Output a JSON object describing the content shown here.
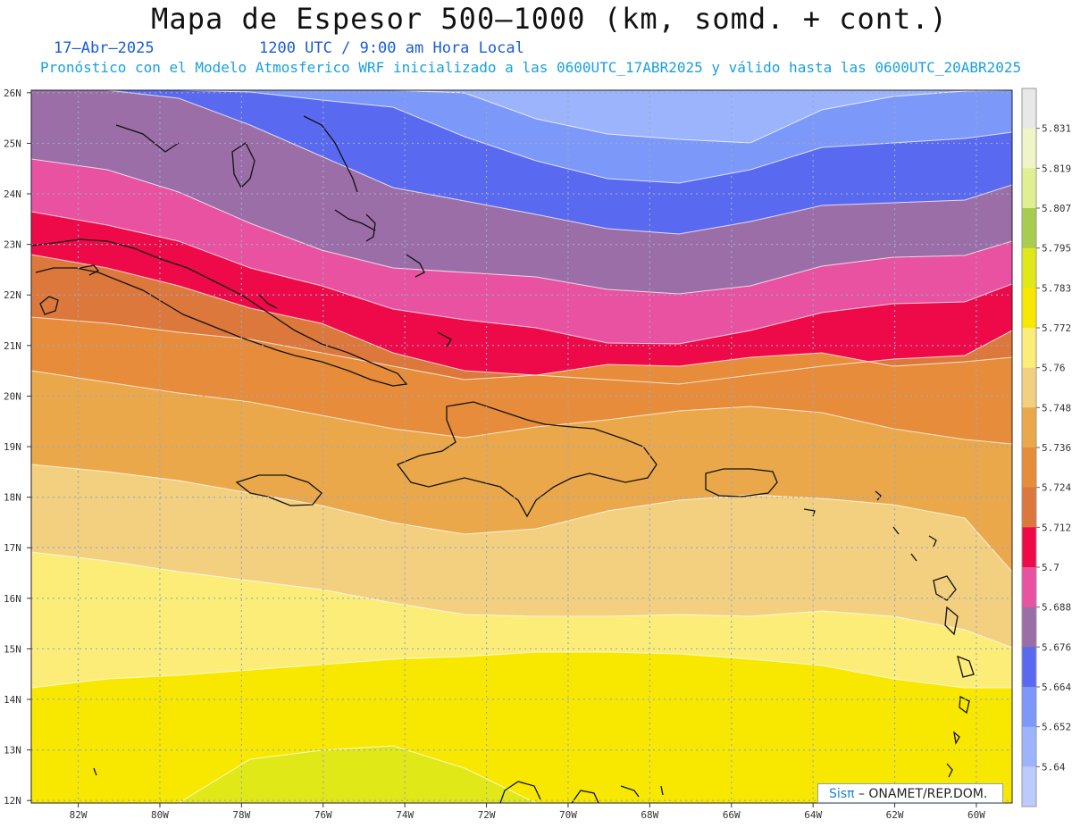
{
  "header": {
    "title": "Mapa de Espesor 500—1000 (km, somd. + cont.)",
    "date": "17–Abr–2025",
    "time": "1200 UTC / 9:00 am Hora Local",
    "forecast": "Pronóstico con el Modelo Atmosferico WRF inicializado a las 0600UTC_17ABR2025 y válido hasta las  0600UTC_20ABR2025"
  },
  "axes": {
    "lat_labels": [
      "26N",
      "25N",
      "24N",
      "23N",
      "22N",
      "21N",
      "20N",
      "19N",
      "18N",
      "17N",
      "16N",
      "15N",
      "14N",
      "13N",
      "12N"
    ],
    "lon_labels": [
      "82W",
      "80W",
      "78W",
      "76W",
      "74W",
      "72W",
      "70W",
      "68W",
      "66W",
      "64W",
      "62W",
      "60W"
    ]
  },
  "colorbar": {
    "labels": [
      "5.831",
      "5.819",
      "5.807",
      "5.795",
      "5.783",
      "5.772",
      "5.76",
      "5.748",
      "5.736",
      "5.724",
      "5.712",
      "5.7",
      "5.688",
      "5.676",
      "5.664",
      "5.652",
      "5.64"
    ],
    "colors": [
      "#e8e8e8",
      "#f0f5c8",
      "#e0f090",
      "#a8cc50",
      "#e0e818",
      "#f8e800",
      "#fcec78",
      "#f2d080",
      "#eaa84a",
      "#e68c3a",
      "#dc783c",
      "#ee0a48",
      "#e852a0",
      "#9c6ea8",
      "#5a6af0",
      "#7c98f8",
      "#9cb4fc",
      "#bccafc"
    ]
  },
  "map": {
    "band_colors": [
      "#bcc8fc",
      "#9cb4fc",
      "#7c98f8",
      "#5a6af0",
      "#9c6ea8",
      "#e852a0",
      "#ee0a48",
      "#dc783c",
      "#e68c3a",
      "#eaa84a",
      "#f2d080",
      "#fcec78",
      "#f8e800",
      "#e0e818"
    ],
    "grid_color": "#9aa8c8",
    "coast_color": "#111111"
  },
  "credit": {
    "brand": "Sisπ",
    "text": " – ONAMET/REP.DOM."
  }
}
